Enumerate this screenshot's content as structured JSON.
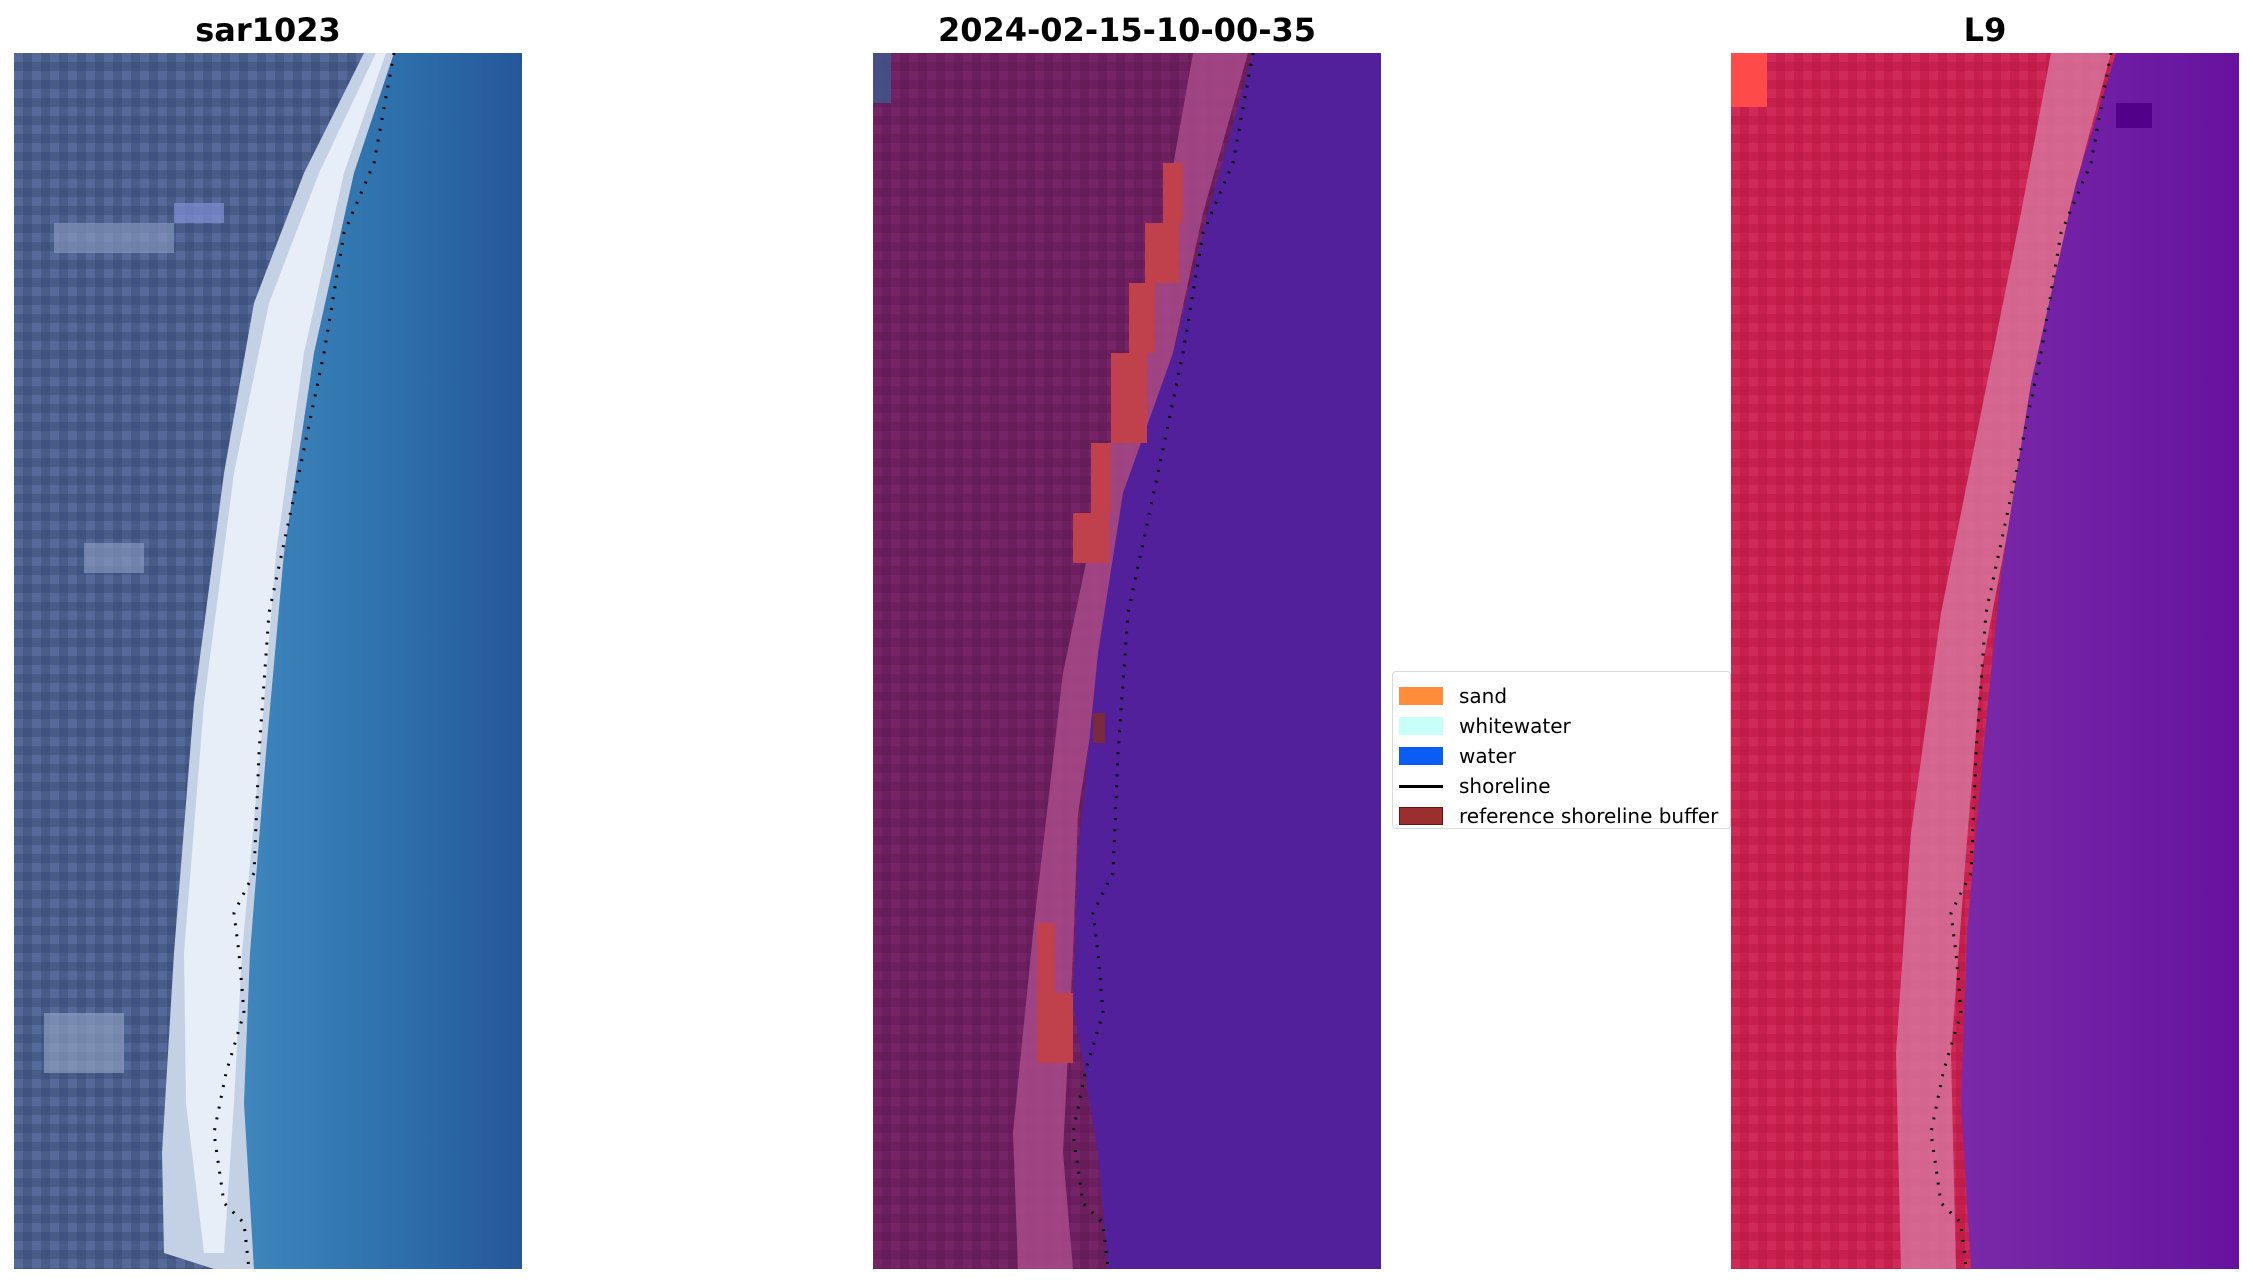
{
  "panels": [
    {
      "title": "sar1023"
    },
    {
      "title": "2024-02-15-10-00-35"
    },
    {
      "title": "L9"
    }
  ],
  "legend": {
    "items": [
      {
        "label": "sand",
        "color": "#ff8c3a",
        "kind": "patch"
      },
      {
        "label": "whitewater",
        "color": "#c8fff8",
        "kind": "patch"
      },
      {
        "label": "water",
        "color": "#0b5cf5",
        "kind": "patch"
      },
      {
        "label": "shoreline",
        "color": "#000000",
        "kind": "line"
      },
      {
        "label": "reference shoreline buffer",
        "color": "#9b2f2f",
        "kind": "patch"
      }
    ]
  },
  "colors": {
    "rgb_land": "#4a5f8c",
    "rgb_beach": "#c9d6e8",
    "rgb_water": "#2f6ea8",
    "classified_land": "#6b1f5e",
    "classified_sand_band": "#a84a8a",
    "classified_buffer": "#c0404c",
    "classified_water": "#52209a",
    "falsecolor_land": "#c8204e",
    "falsecolor_beach": "#d6729a",
    "falsecolor_water": "#6a14a0"
  }
}
